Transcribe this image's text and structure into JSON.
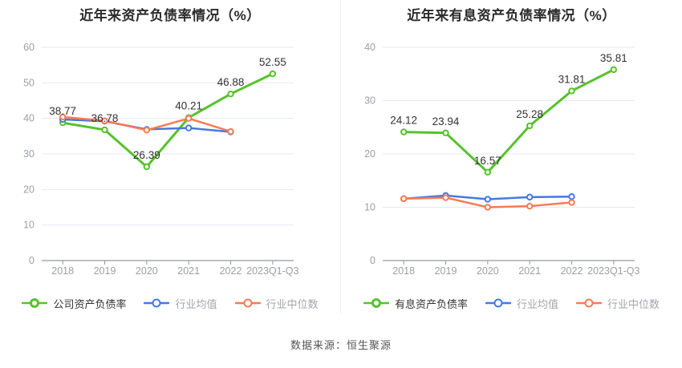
{
  "footer": {
    "source_note": "数据来源：恒生聚源"
  },
  "colors": {
    "grid": "#e4eaf2",
    "axis_line": "#999999",
    "axis_text": "#9aa0a6",
    "data_label": "#333333",
    "legend_active_text": "#333333",
    "legend_muted_text": "#a0a6ad",
    "series_green": "#56c22d",
    "series_blue": "#4579e2",
    "series_orange": "#f77b54"
  },
  "chart_data": [
    {
      "type": "line",
      "title": "近年来资产负债率情况（%）",
      "categories": [
        "2018",
        "2019",
        "2020",
        "2021",
        "2022",
        "2023Q1-Q3"
      ],
      "ylim": [
        0,
        60
      ],
      "yticks": [
        0,
        10,
        20,
        30,
        40,
        50,
        60
      ],
      "grid": true,
      "legend_position": "bottom",
      "series": [
        {
          "name": "公司资产负债率",
          "color": "#56c22d",
          "primary": true,
          "values": [
            38.77,
            36.78,
            26.39,
            40.21,
            46.88,
            52.55
          ],
          "data_labels": [
            "38.77",
            "36.78",
            "26.39",
            "40.21",
            "46.88",
            "52.55"
          ]
        },
        {
          "name": "行业均值",
          "color": "#4579e2",
          "primary": false,
          "values": [
            39.7,
            39.2,
            36.9,
            37.3,
            36.2
          ]
        },
        {
          "name": "行业中位数",
          "color": "#f77b54",
          "primary": false,
          "values": [
            40.4,
            39.3,
            36.7,
            40.0,
            36.3
          ]
        }
      ]
    },
    {
      "type": "line",
      "title": "近年来有息资产负债率情况（%）",
      "categories": [
        "2018",
        "2019",
        "2020",
        "2021",
        "2022",
        "2023Q1-Q3"
      ],
      "ylim": [
        0,
        40
      ],
      "yticks": [
        0,
        10,
        20,
        30,
        40
      ],
      "grid": true,
      "legend_position": "bottom",
      "series": [
        {
          "name": "有息资产负债率",
          "color": "#56c22d",
          "primary": true,
          "values": [
            24.12,
            23.94,
            16.57,
            25.28,
            31.81,
            35.81
          ],
          "data_labels": [
            "24.12",
            "23.94",
            "16.57",
            "25.28",
            "31.81",
            "35.81"
          ]
        },
        {
          "name": "行业均值",
          "color": "#4579e2",
          "primary": false,
          "values": [
            11.6,
            12.2,
            11.5,
            11.9,
            12.0
          ]
        },
        {
          "name": "行业中位数",
          "color": "#f77b54",
          "primary": false,
          "values": [
            11.6,
            11.8,
            10.0,
            10.2,
            10.9
          ]
        }
      ]
    }
  ]
}
